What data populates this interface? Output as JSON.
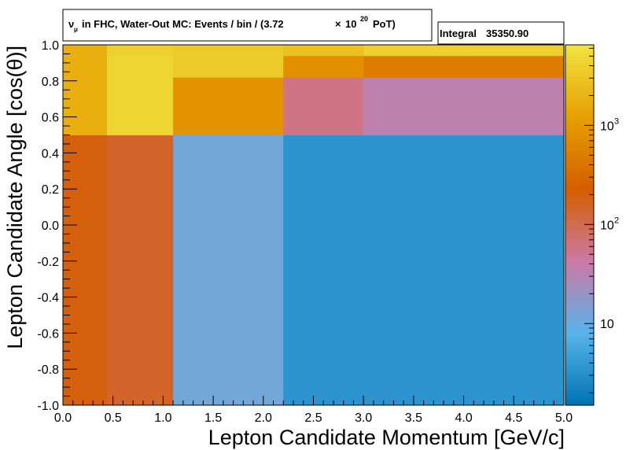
{
  "title": {
    "nu_symbol": "ν",
    "nu_sub": "μ",
    "text_a": "in FHC, Water-Out MC: Events / bin / (3.72",
    "times": "×",
    "ten": "10",
    "exp": "20",
    "text_b": "PoT)"
  },
  "stats": {
    "integral_label": "Integral",
    "integral_value": "35350.90"
  },
  "chart_data": {
    "type": "heatmap",
    "xlabel": "Lepton Candidate Momentum [GeV/c]",
    "ylabel": "Lepton Candidate Angle [cos(θ)]",
    "xlim": [
      0.0,
      5.0
    ],
    "ylim": [
      -1.0,
      1.0
    ],
    "x_ticks": [
      0.0,
      0.5,
      1.0,
      1.5,
      2.0,
      2.5,
      3.0,
      3.5,
      4.0,
      4.5,
      5.0
    ],
    "x_tick_labels": [
      "0.0",
      "0.5",
      "1.0",
      "1.5",
      "2.0",
      "2.5",
      "3.0",
      "3.5",
      "4.0",
      "4.5",
      "5.0"
    ],
    "y_ticks": [
      -1.0,
      -0.8,
      -0.6,
      -0.4,
      -0.2,
      0.0,
      0.2,
      0.4,
      0.6,
      0.8,
      1.0
    ],
    "y_tick_labels": [
      "-1.0",
      "-0.8",
      "-0.6",
      "-0.4",
      "-0.2",
      "0.0",
      "0.2",
      "0.4",
      "0.6",
      "0.8",
      "1.0"
    ],
    "z_scale": "log",
    "z_range": [
      1.5,
      6500
    ],
    "colorbar_ticks": [
      10,
      100,
      1000
    ],
    "colorbar_tick_labels": [
      {
        "base": "10",
        "exp": ""
      },
      {
        "base": "10",
        "exp": "2"
      },
      {
        "base": "10",
        "exp": "3"
      }
    ],
    "colormap": [
      "#0072b2",
      "#56b4e9",
      "#cc79a7",
      "#d55e00",
      "#e69f00",
      "#f0e442"
    ],
    "bins": [
      {
        "x": [
          0.0,
          0.44
        ],
        "y": [
          -1.0,
          0.5
        ],
        "value": 200
      },
      {
        "x": [
          0.0,
          0.44
        ],
        "y": [
          0.5,
          1.0
        ],
        "value": 1800
      },
      {
        "x": [
          0.44,
          1.1
        ],
        "y": [
          -1.0,
          0.5
        ],
        "value": 150
      },
      {
        "x": [
          0.44,
          1.1
        ],
        "y": [
          0.5,
          0.94
        ],
        "value": 4500
      },
      {
        "x": [
          0.44,
          1.1
        ],
        "y": [
          0.94,
          1.0
        ],
        "value": 4000
      },
      {
        "x": [
          1.1,
          2.2
        ],
        "y": [
          -1.0,
          0.5
        ],
        "value": 12
      },
      {
        "x": [
          1.1,
          2.2
        ],
        "y": [
          0.5,
          0.82
        ],
        "value": 900
      },
      {
        "x": [
          1.1,
          2.2
        ],
        "y": [
          0.82,
          1.0
        ],
        "value": 3500
      },
      {
        "x": [
          2.2,
          3.0
        ],
        "y": [
          -1.0,
          0.5
        ],
        "value": 3.5
      },
      {
        "x": [
          2.2,
          3.0
        ],
        "y": [
          0.5,
          0.82
        ],
        "value": 60
      },
      {
        "x": [
          2.2,
          3.0
        ],
        "y": [
          0.82,
          0.94
        ],
        "value": 800
      },
      {
        "x": [
          2.2,
          3.0
        ],
        "y": [
          0.94,
          1.0
        ],
        "value": 2800
      },
      {
        "x": [
          3.0,
          5.0
        ],
        "y": [
          -1.0,
          0.5
        ],
        "value": 3.5
      },
      {
        "x": [
          3.0,
          5.0
        ],
        "y": [
          0.5,
          0.82
        ],
        "value": 35
      },
      {
        "x": [
          3.0,
          5.0
        ],
        "y": [
          0.82,
          0.94
        ],
        "value": 500
      },
      {
        "x": [
          3.0,
          5.0
        ],
        "y": [
          0.94,
          1.0
        ],
        "value": 4000
      }
    ]
  }
}
